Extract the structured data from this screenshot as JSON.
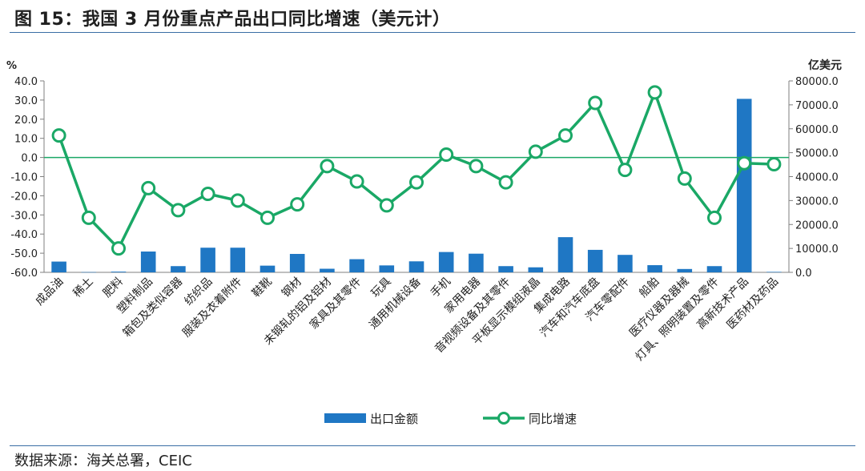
{
  "title": "图 15：我国 3 月份重点产品出口同比增速（美元计）",
  "source": "数据来源：海关总署，CEIC",
  "chart_data": {
    "type": "bar+line",
    "left_axis_unit": "%",
    "right_axis_unit": "亿美元",
    "ylim_left": [
      -60,
      40
    ],
    "ylim_right": [
      0,
      80000
    ],
    "left_ticks": [
      "40.0",
      "30.0",
      "20.0",
      "10.0",
      "0.0",
      "-10.0",
      "-20.0",
      "-30.0",
      "-40.0",
      "-50.0",
      "-60.0"
    ],
    "right_ticks": [
      "80000.0",
      "70000.0",
      "60000.0",
      "50000.0",
      "40000.0",
      "30000.0",
      "20000.0",
      "10000.0",
      "0.0"
    ],
    "categories": [
      "成品油",
      "稀土",
      "肥料",
      "塑料制品",
      "箱包及类似容器",
      "纺织品",
      "服装及衣着附件",
      "鞋靴",
      "钢材",
      "未锻轧的铝及铝材",
      "家具及其零件",
      "玩具",
      "通用机械设备",
      "手机",
      "家用电器",
      "音视频设备及其零件",
      "平板显示模组液晶",
      "集成电路",
      "汽车和汽车底盘",
      "汽车零配件",
      "船舶",
      "医疗仪器及器械",
      "灯具、照明装置及零件",
      "高新技术产品",
      "医药材及药品"
    ],
    "series": [
      {
        "name": "出口金额",
        "type": "bar",
        "axis": "right",
        "color": "#1f77c4",
        "values": [
          4500,
          100,
          300,
          8700,
          2600,
          10300,
          10300,
          2800,
          7700,
          1500,
          5500,
          2900,
          4600,
          8500,
          7800,
          2600,
          2100,
          14700,
          9400,
          7300,
          3000,
          1400,
          2600,
          72500,
          200
        ]
      },
      {
        "name": "同比增速",
        "type": "line",
        "axis": "left",
        "color": "#1aa866",
        "values": [
          11.5,
          -31.5,
          -47.5,
          -16,
          -27.5,
          -19,
          -22.5,
          -31.5,
          -24.5,
          -4.5,
          -12.5,
          -25,
          -13,
          1.5,
          -4.5,
          -13,
          3,
          11.5,
          28.5,
          -6.5,
          34,
          -11,
          -31.5,
          -3,
          -3.5
        ]
      }
    ],
    "legend_position": "bottom-center",
    "zero_line": true
  }
}
